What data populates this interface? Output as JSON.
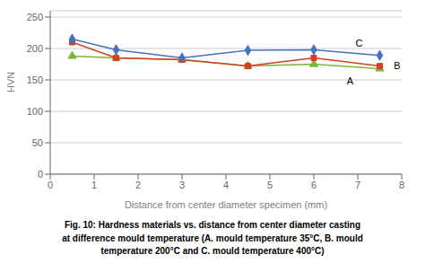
{
  "chart_data": {
    "type": "line",
    "x": [
      0.5,
      1.5,
      3.0,
      4.5,
      6.0,
      7.5
    ],
    "series": [
      {
        "color": "#7cb734",
        "marker": "triangle",
        "values": [
          188,
          185,
          182,
          172,
          175,
          168
        ]
      },
      {
        "color": "#d44020",
        "marker": "square",
        "values": [
          210,
          185,
          182,
          172,
          185,
          172
        ]
      },
      {
        "color": "#4472c4",
        "marker": "diamond",
        "values": [
          215,
          198,
          185,
          197,
          198,
          189
        ]
      }
    ],
    "x_label": "Distance from center diameter specimen (mm)",
    "y_label": "HVN",
    "xlim": [
      0,
      8
    ],
    "xticks": [
      0,
      1,
      2,
      3,
      4,
      5,
      6,
      7,
      8
    ],
    "ylim": [
      0,
      260
    ],
    "yticks": [
      0,
      50,
      100,
      150,
      200,
      250
    ],
    "grid": true,
    "annotations": [
      {
        "x": 6.75,
        "y": 149,
        "text": "A"
      },
      {
        "x": 7.82,
        "y": 173,
        "text": "B"
      },
      {
        "x": 6.95,
        "y": 208,
        "text": "C"
      }
    ],
    "caption": [
      "Fig. 10: Hardness materials vs. distance from center diameter casting",
      "at difference mould temperature (A. mould temperature 35°C, B. mould",
      "temperature 200°C and C. mould temperature 400°C)"
    ]
  }
}
